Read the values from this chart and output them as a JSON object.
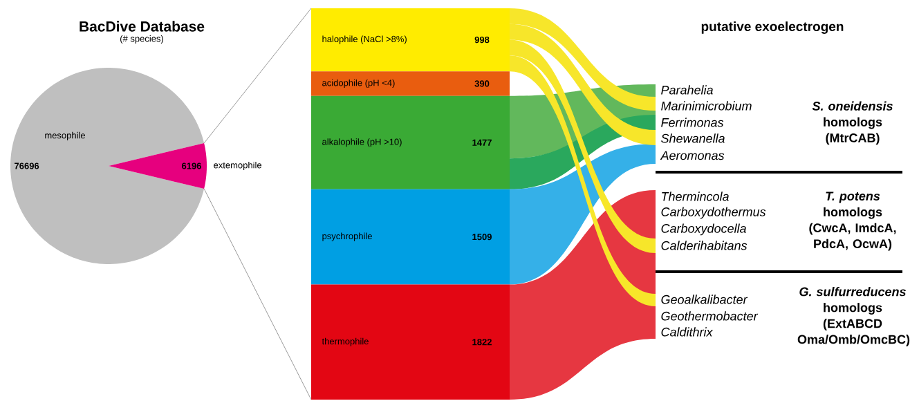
{
  "chart_data": [
    {
      "type": "pie",
      "title": "BacDive Database",
      "subtitle": "(# species)",
      "categories": [
        "mesophile",
        "extemophile"
      ],
      "values": [
        76696,
        6196
      ],
      "colors": [
        "#bfbfbf",
        "#e6007e"
      ],
      "data_labels": true
    },
    {
      "type": "bar",
      "stacked": true,
      "categories": [
        null
      ],
      "data_labels": true,
      "series": [
        {
          "name": "thermophile",
          "color": "#e30613",
          "values": [
            1822
          ]
        },
        {
          "name": "psychrophile",
          "color": "#009fe3",
          "values": [
            1509
          ]
        },
        {
          "name": "alkalophile (pH >10)",
          "color": "#3aaa35",
          "values": [
            1477
          ]
        },
        {
          "name": "acidophile (pH <4)",
          "color": "#e95d0f",
          "values": [
            390
          ]
        },
        {
          "name": "halophile (NaCl >8%)",
          "color": "#ffec00",
          "values": [
            998
          ]
        }
      ]
    },
    {
      "type": "other",
      "title": "putative exoelectrogen",
      "categories": [
        "Parahelia",
        "Marinimicrobium",
        "Ferrimonas",
        "Shewanella",
        "Aeromonas",
        "Thermincola",
        "Carboxydothermus",
        "Carboxydocella",
        "Calderihabitans",
        "Geoalkalibacter",
        "Geothermobacter",
        "Caldithrix"
      ],
      "annotations": [
        "*S. oneidensis* homologs (MtrCAB)",
        "*T. potens* homologs (CwcA, ImdcA, PdcA, OcwA)",
        "*G. sulfurreducens* homologs (ExtABCD Oma/Omb/OmcBC)"
      ]
    }
  ]
}
